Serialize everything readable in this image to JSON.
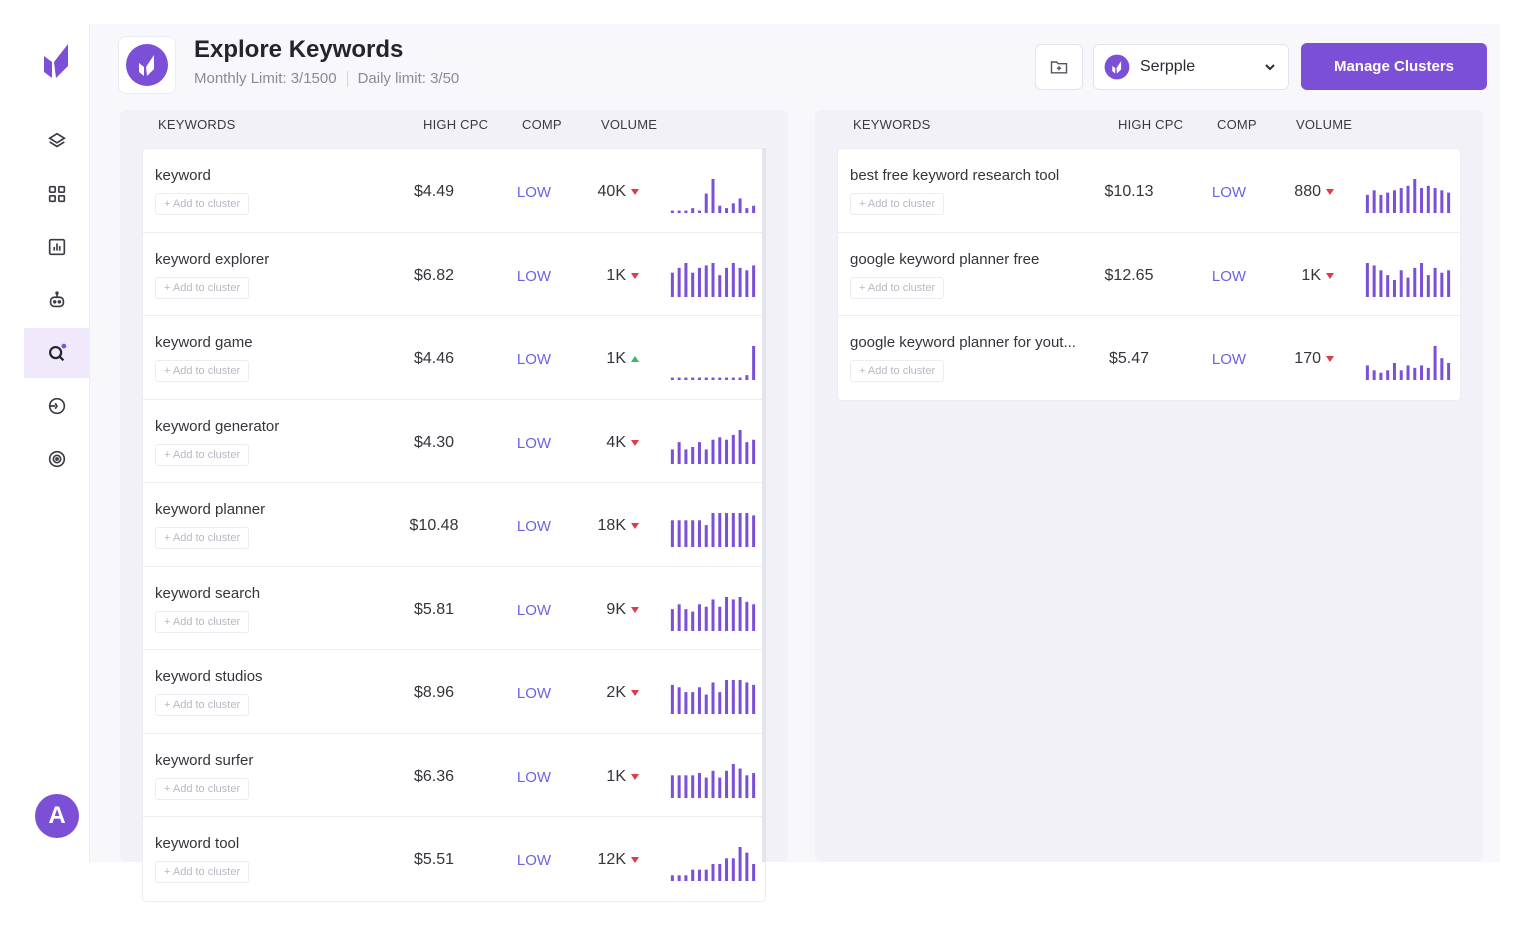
{
  "header": {
    "title": "Explore Keywords",
    "monthly_limit": "Monthly Limit: 3/1500",
    "daily_limit": "Daily limit: 3/50",
    "project": "Serpple",
    "manage_button": "Manage Clusters"
  },
  "sidebar": {
    "icons": [
      "layers-icon",
      "dashboard-grid-icon",
      "chart-icon",
      "robot-icon",
      "keyword-search-icon",
      "competitor-icon",
      "settings-icon"
    ],
    "active": "keyword-search-icon",
    "avatar_letter": "A"
  },
  "columns": {
    "keywords": "KEYWORDS",
    "high_cpc": "HIGH CPC",
    "comp": "COMP",
    "volume": "VOLUME"
  },
  "add_label": "+ Add to cluster",
  "accent": "#7b4fd6",
  "left_keywords": [
    {
      "keyword": "keyword",
      "cpc": "$4.49",
      "comp": "LOW",
      "volume": "40K",
      "trend": "down",
      "spark": [
        1,
        1,
        1,
        2,
        1,
        8,
        14,
        3,
        2,
        4,
        6,
        2,
        3
      ]
    },
    {
      "keyword": "keyword explorer",
      "cpc": "$6.82",
      "comp": "LOW",
      "volume": "1K",
      "trend": "down",
      "spark": [
        10,
        12,
        14,
        10,
        12,
        13,
        14,
        9,
        12,
        14,
        12,
        11,
        13
      ]
    },
    {
      "keyword": "keyword game",
      "cpc": "$4.46",
      "comp": "LOW",
      "volume": "1K",
      "trend": "up",
      "spark": [
        1,
        1,
        1,
        1,
        1,
        1,
        1,
        1,
        1,
        1,
        1,
        2,
        14
      ]
    },
    {
      "keyword": "keyword generator",
      "cpc": "$4.30",
      "comp": "LOW",
      "volume": "4K",
      "trend": "down",
      "spark": [
        6,
        9,
        6,
        7,
        9,
        6,
        10,
        11,
        10,
        12,
        14,
        9,
        10
      ]
    },
    {
      "keyword": "keyword planner",
      "cpc": "$10.48",
      "comp": "LOW",
      "volume": "18K",
      "trend": "down",
      "spark": [
        11,
        11,
        11,
        11,
        11,
        9,
        14,
        14,
        14,
        14,
        14,
        14,
        13
      ]
    },
    {
      "keyword": "keyword search",
      "cpc": "$5.81",
      "comp": "LOW",
      "volume": "9K",
      "trend": "down",
      "spark": [
        9,
        11,
        9,
        8,
        11,
        10,
        13,
        10,
        14,
        13,
        14,
        12,
        11
      ]
    },
    {
      "keyword": "keyword studios",
      "cpc": "$8.96",
      "comp": "LOW",
      "volume": "2K",
      "trend": "down",
      "spark": [
        12,
        11,
        9,
        9,
        11,
        8,
        13,
        9,
        14,
        14,
        14,
        13,
        12
      ]
    },
    {
      "keyword": "keyword surfer",
      "cpc": "$6.36",
      "comp": "LOW",
      "volume": "1K",
      "trend": "down",
      "spark": [
        10,
        10,
        10,
        10,
        11,
        9,
        12,
        9,
        12,
        15,
        13,
        10,
        11
      ]
    },
    {
      "keyword": "keyword tool",
      "cpc": "$5.51",
      "comp": "LOW",
      "volume": "12K",
      "trend": "down",
      "spark": [
        1,
        1,
        1,
        2,
        2,
        2,
        3,
        3,
        4,
        4,
        6,
        5,
        3
      ]
    }
  ],
  "right_keywords": [
    {
      "keyword": "best free keyword research tool",
      "cpc": "$10.13",
      "comp": "LOW",
      "volume": "880",
      "trend": "down",
      "spark": [
        8,
        10,
        8,
        9,
        10,
        11,
        12,
        15,
        11,
        12,
        11,
        10,
        9
      ]
    },
    {
      "keyword": "google keyword planner free",
      "cpc": "$12.65",
      "comp": "LOW",
      "volume": "1K",
      "trend": "down",
      "spark": [
        14,
        13,
        11,
        9,
        7,
        11,
        8,
        12,
        14,
        9,
        12,
        10,
        11
      ]
    },
    {
      "keyword": "google keyword planner for yout...",
      "cpc": "$5.47",
      "comp": "LOW",
      "volume": "170",
      "trend": "down",
      "spark": [
        6,
        4,
        3,
        4,
        7,
        4,
        6,
        5,
        6,
        5,
        14,
        9,
        7
      ]
    }
  ]
}
